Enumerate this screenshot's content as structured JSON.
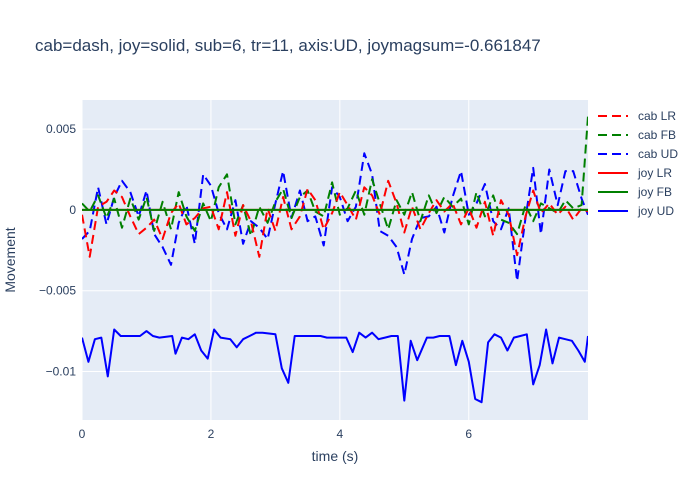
{
  "chart_data": {
    "type": "line",
    "title": "cab=dash, joy=solid, sub=6, tr=11, axis:UD, joymagsum=-0.661847",
    "xlabel": "time (s)",
    "ylabel": "Movement",
    "xlim": [
      0,
      7.85
    ],
    "ylim": [
      -0.013,
      0.0068
    ],
    "xticks": [
      0,
      2,
      4,
      6
    ],
    "xtick_labels": [
      "0",
      "2",
      "4",
      "6"
    ],
    "yticks": [
      0.005,
      0,
      -0.005,
      -0.01
    ],
    "ytick_labels": [
      "0.005",
      "0",
      "−0.005",
      "−0.01"
    ],
    "legend_position": "top-right",
    "series": [
      {
        "name": "cab LR",
        "style": "dash",
        "color": "#ff0000",
        "x": [
          0.0,
          0.12,
          0.25,
          0.38,
          0.5,
          0.62,
          0.75,
          0.88,
          1.0,
          1.12,
          1.25,
          1.38,
          1.5,
          1.62,
          1.75,
          1.88,
          2.0,
          2.12,
          2.25,
          2.38,
          2.5,
          2.62,
          2.75,
          2.88,
          3.0,
          3.12,
          3.25,
          3.38,
          3.5,
          3.62,
          3.75,
          3.88,
          4.0,
          4.12,
          4.25,
          4.38,
          4.5,
          4.62,
          4.75,
          4.88,
          5.0,
          5.12,
          5.25,
          5.38,
          5.5,
          5.62,
          5.75,
          5.88,
          6.0,
          6.12,
          6.25,
          6.38,
          6.5,
          6.62,
          6.75,
          6.88,
          7.0,
          7.12,
          7.25,
          7.38,
          7.5,
          7.62,
          7.75,
          7.85
        ],
        "y": [
          -0.0003,
          -0.0029,
          0.0002,
          0.0005,
          0.0012,
          0.0008,
          -0.0004,
          -0.0015,
          -0.0011,
          -0.0006,
          -0.0018,
          -0.0002,
          0.0004,
          -0.0009,
          -0.0005,
          0.0001,
          0.0002,
          -0.0012,
          0.0011,
          -0.0016,
          0.0003,
          -0.0007,
          -0.0029,
          0.0001,
          -0.0013,
          0.0008,
          -0.0012,
          -0.0004,
          0.0013,
          0.0006,
          -0.0012,
          -0.0002,
          0.0011,
          0.0003,
          -0.0006,
          0.0014,
          0.0009,
          -0.0003,
          0.0018,
          0.0004,
          -0.0014,
          0.0002,
          -0.0012,
          -0.0002,
          0.0006,
          -0.0001,
          0.0004,
          -0.0009,
          0.0001,
          -0.0011,
          0.0005,
          -0.0016,
          0.0006,
          -0.0003,
          -0.0028,
          -0.0004,
          0.0012,
          -0.0002,
          0.0004,
          -0.0003,
          0.0002,
          -0.0006,
          0.0001,
          -0.0001
        ]
      },
      {
        "name": "cab FB",
        "style": "dash",
        "color": "#008000",
        "x": [
          0.0,
          0.12,
          0.25,
          0.38,
          0.5,
          0.62,
          0.75,
          0.88,
          1.0,
          1.12,
          1.25,
          1.38,
          1.5,
          1.62,
          1.75,
          1.88,
          2.0,
          2.12,
          2.25,
          2.38,
          2.5,
          2.62,
          2.75,
          2.88,
          3.0,
          3.12,
          3.25,
          3.38,
          3.5,
          3.62,
          3.75,
          3.88,
          4.0,
          4.12,
          4.25,
          4.38,
          4.5,
          4.62,
          4.75,
          4.88,
          5.0,
          5.12,
          5.25,
          5.38,
          5.5,
          5.62,
          5.75,
          5.88,
          6.0,
          6.12,
          6.25,
          6.38,
          6.5,
          6.62,
          6.75,
          6.88,
          7.0,
          7.12,
          7.25,
          7.38,
          7.5,
          7.62,
          7.75,
          7.85
        ],
        "y": [
          0.0004,
          -0.0001,
          0.0009,
          -0.0005,
          0.0007,
          -0.0011,
          0.0007,
          -0.0006,
          0.0008,
          -0.0013,
          0.0005,
          -0.0012,
          0.0011,
          -0.0004,
          -0.0013,
          0.0004,
          -0.0007,
          0.0014,
          0.0022,
          -0.0009,
          0.0003,
          -0.0016,
          0.0002,
          -0.0008,
          0.0005,
          0.0013,
          -0.0005,
          0.0008,
          0.0012,
          -0.0001,
          -0.0004,
          0.0017,
          -0.0003,
          0.0001,
          0.0012,
          -0.0003,
          0.0019,
          0.0004,
          -0.0012,
          0.0006,
          -0.0003,
          0.0011,
          -0.0007,
          0.0009,
          -0.0002,
          0.0008,
          0.0002,
          0.0007,
          -0.0009,
          0.0011,
          -0.0004,
          0.0009,
          -0.0006,
          -0.0008,
          -0.0015,
          0.0003,
          -0.0007,
          0.0004,
          0.0001,
          -0.0002,
          0.0006,
          0.0001,
          0.0003,
          0.0058
        ]
      },
      {
        "name": "cab UD",
        "style": "dash",
        "color": "#0000ff",
        "x": [
          0.0,
          0.12,
          0.25,
          0.38,
          0.5,
          0.62,
          0.75,
          0.88,
          1.0,
          1.12,
          1.25,
          1.38,
          1.5,
          1.62,
          1.75,
          1.88,
          2.0,
          2.12,
          2.25,
          2.38,
          2.5,
          2.62,
          2.75,
          2.88,
          3.0,
          3.12,
          3.25,
          3.38,
          3.5,
          3.62,
          3.75,
          3.88,
          4.0,
          4.12,
          4.25,
          4.38,
          4.5,
          4.62,
          4.75,
          4.88,
          5.0,
          5.12,
          5.25,
          5.38,
          5.5,
          5.62,
          5.75,
          5.88,
          6.0,
          6.12,
          6.25,
          6.38,
          6.5,
          6.62,
          6.75,
          6.88,
          7.0,
          7.12,
          7.25,
          7.38,
          7.5,
          7.62,
          7.75,
          7.85
        ],
        "y": [
          -0.0018,
          -0.0013,
          0.0014,
          -0.0009,
          0.0008,
          0.0018,
          0.0011,
          -0.0004,
          0.0012,
          -0.0015,
          -0.0023,
          -0.0034,
          -0.0008,
          0.0003,
          -0.0021,
          0.0022,
          0.0015,
          -0.0002,
          -0.0012,
          0.0006,
          -0.0021,
          -0.0007,
          -0.0011,
          -0.0018,
          0.0004,
          0.0024,
          -0.0005,
          0.0012,
          -0.0007,
          -0.0004,
          -0.0022,
          0.0014,
          0.0008,
          -0.0007,
          0.0002,
          0.0035,
          0.0022,
          -0.0013,
          -0.0016,
          -0.0023,
          -0.004,
          -0.0018,
          -0.0005,
          -0.0004,
          0.0002,
          -0.0014,
          0.0008,
          0.0024,
          -0.0003,
          0.0004,
          0.0016,
          -0.0007,
          -0.0012,
          0.0001,
          -0.0044,
          -0.0005,
          0.0026,
          -0.0015,
          0.0025,
          0.0003,
          0.0024,
          0.0024,
          0.0007,
          -0.0003
        ]
      },
      {
        "name": "joy LR",
        "style": "solid",
        "color": "#ff0000",
        "x": [
          0.0,
          7.85
        ],
        "y": [
          0.0,
          0.0
        ]
      },
      {
        "name": "joy FB",
        "style": "solid",
        "color": "#008000",
        "x": [
          0.0,
          7.85
        ],
        "y": [
          0.0,
          0.0
        ]
      },
      {
        "name": "joy UD",
        "style": "solid",
        "color": "#0000ff",
        "x": [
          0.0,
          0.1,
          0.2,
          0.3,
          0.4,
          0.5,
          0.6,
          0.9,
          1.0,
          1.1,
          1.2,
          1.4,
          1.45,
          1.55,
          1.65,
          1.75,
          1.85,
          1.95,
          2.05,
          2.15,
          2.3,
          2.4,
          2.5,
          2.6,
          2.7,
          2.8,
          3.0,
          3.1,
          3.2,
          3.3,
          3.5,
          3.7,
          3.8,
          4.1,
          4.2,
          4.3,
          4.4,
          4.5,
          4.6,
          4.7,
          4.8,
          4.9,
          5.0,
          5.1,
          5.2,
          5.35,
          5.45,
          5.55,
          5.7,
          5.8,
          5.9,
          6.0,
          6.1,
          6.2,
          6.3,
          6.4,
          6.5,
          6.6,
          6.7,
          6.8,
          6.9,
          7.0,
          7.1,
          7.2,
          7.3,
          7.4,
          7.5,
          7.6,
          7.7,
          7.8,
          7.85
        ],
        "y": [
          -0.0079,
          -0.0094,
          -0.008,
          -0.0079,
          -0.0103,
          -0.0074,
          -0.0078,
          -0.0078,
          -0.0075,
          -0.0078,
          -0.0079,
          -0.0078,
          -0.0089,
          -0.0079,
          -0.008,
          -0.0077,
          -0.0087,
          -0.0092,
          -0.0074,
          -0.0079,
          -0.008,
          -0.0085,
          -0.008,
          -0.0078,
          -0.0076,
          -0.0076,
          -0.0077,
          -0.0098,
          -0.0107,
          -0.0078,
          -0.0078,
          -0.0078,
          -0.0079,
          -0.0079,
          -0.0088,
          -0.0076,
          -0.0079,
          -0.0076,
          -0.008,
          -0.0079,
          -0.0078,
          -0.0078,
          -0.0118,
          -0.0081,
          -0.0093,
          -0.0079,
          -0.0079,
          -0.0078,
          -0.0078,
          -0.0096,
          -0.0081,
          -0.0094,
          -0.0117,
          -0.0119,
          -0.0082,
          -0.0077,
          -0.0079,
          -0.0087,
          -0.0079,
          -0.0078,
          -0.0077,
          -0.0108,
          -0.0096,
          -0.0074,
          -0.0095,
          -0.0079,
          -0.008,
          -0.0081,
          -0.0087,
          -0.0094,
          -0.0078
        ]
      }
    ]
  }
}
